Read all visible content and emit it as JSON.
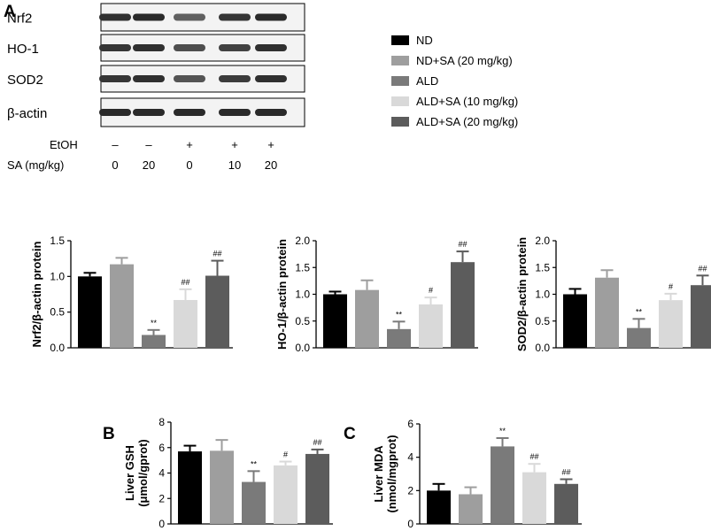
{
  "panel_labels": {
    "a": "A",
    "b": "B",
    "c": "C"
  },
  "western_blot": {
    "proteins": [
      "Nrf2",
      "HO-1",
      "SOD2",
      "β-actin"
    ],
    "band_intensity": [
      [
        0.85,
        0.9,
        0.45,
        0.8,
        0.9
      ],
      [
        0.8,
        0.85,
        0.6,
        0.7,
        0.85
      ],
      [
        0.8,
        0.85,
        0.55,
        0.75,
        0.85
      ],
      [
        0.9,
        0.9,
        0.9,
        0.9,
        0.9
      ]
    ],
    "etoh_label": "EtOH",
    "etoh_values": [
      "–",
      "–",
      "+",
      "+",
      "+"
    ],
    "sa_label": "SA (mg/kg)",
    "sa_values": [
      "0",
      "20",
      "0",
      "10",
      "20"
    ]
  },
  "legend": {
    "items": [
      {
        "label": "ND",
        "color": "#000000"
      },
      {
        "label": "ND+SA (20 mg/kg)",
        "color": "#9e9e9e"
      },
      {
        "label": "ALD",
        "color": "#7a7a7a"
      },
      {
        "label": "ALD+SA (10 mg/kg)",
        "color": "#d9d9d9"
      },
      {
        "label": "ALD+SA (20 mg/kg)",
        "color": "#5c5c5c"
      }
    ]
  },
  "chart_data": [
    {
      "type": "bar",
      "id": "nrf2",
      "ylabel": "Nrf2/β-actin protein",
      "ylim": [
        0,
        1.5
      ],
      "yticks": [
        "0.0",
        "0.5",
        "1.0",
        "1.5"
      ],
      "values": [
        1.0,
        1.17,
        0.18,
        0.67,
        1.01
      ],
      "errors": [
        0.05,
        0.09,
        0.07,
        0.15,
        0.21
      ],
      "annotations": [
        "",
        "",
        "**",
        "##",
        "##"
      ]
    },
    {
      "type": "bar",
      "id": "ho1",
      "ylabel": "HO-1/β-actin protein",
      "ylim": [
        0,
        2.0
      ],
      "yticks": [
        "0.0",
        "0.5",
        "1.0",
        "1.5",
        "2.0"
      ],
      "values": [
        1.0,
        1.08,
        0.35,
        0.81,
        1.6
      ],
      "errors": [
        0.05,
        0.18,
        0.14,
        0.13,
        0.2
      ],
      "annotations": [
        "",
        "",
        "**",
        "#",
        "##"
      ]
    },
    {
      "type": "bar",
      "id": "sod2",
      "ylabel": "SOD2/β-actin protein",
      "ylim": [
        0,
        2.0
      ],
      "yticks": [
        "0.0",
        "0.5",
        "1.0",
        "1.5",
        "2.0"
      ],
      "values": [
        1.0,
        1.31,
        0.37,
        0.89,
        1.17
      ],
      "errors": [
        0.1,
        0.14,
        0.17,
        0.12,
        0.18
      ],
      "annotations": [
        "",
        "",
        "**",
        "#",
        "##"
      ]
    },
    {
      "type": "bar",
      "id": "gsh",
      "ylabel": "Liver GSH",
      "ylabel2": "(μmol/gprot)",
      "ylim": [
        0,
        8
      ],
      "yticks": [
        "0",
        "2",
        "4",
        "6",
        "8"
      ],
      "values": [
        5.7,
        5.75,
        3.3,
        4.6,
        5.5
      ],
      "errors": [
        0.45,
        0.85,
        0.85,
        0.3,
        0.35
      ],
      "annotations": [
        "",
        "",
        "**",
        "#",
        "##"
      ]
    },
    {
      "type": "bar",
      "id": "mda",
      "ylabel": "Liver MDA",
      "ylabel2": "(nmol/mgprot)",
      "ylim": [
        0,
        6
      ],
      "yticks": [
        "0",
        "2",
        "4",
        "6"
      ],
      "values": [
        2.0,
        1.78,
        4.65,
        3.1,
        2.4
      ],
      "errors": [
        0.4,
        0.42,
        0.5,
        0.5,
        0.28
      ],
      "annotations": [
        "",
        "",
        "**",
        "##",
        "##"
      ]
    }
  ]
}
